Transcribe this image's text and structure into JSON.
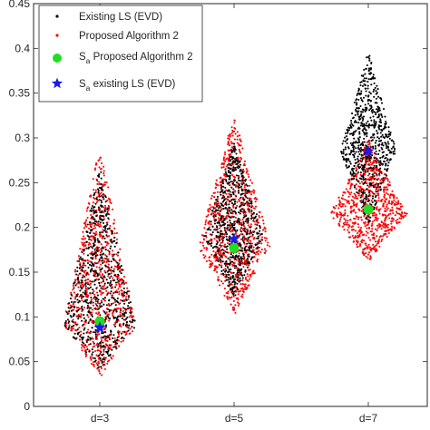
{
  "chart_data": {
    "type": "scatter",
    "categories": [
      "d=3",
      "d=5",
      "d=7"
    ],
    "ylim": [
      0,
      0.45
    ],
    "yticks": [
      "0",
      "0.05",
      "0.1",
      "0.15",
      "0.2",
      "0.25",
      "0.3",
      "0.35",
      "0.4",
      "0.45"
    ],
    "legend_position": "top-left",
    "legend": [
      {
        "label": "Existing LS (EVD)",
        "marker": "dot",
        "color": "#000000"
      },
      {
        "label": "Proposed Algorithm 2",
        "marker": "dot",
        "color": "#ff0000"
      },
      {
        "label_main": "S",
        "label_sub": "a",
        "label_rest": " Proposed Algorithm 2",
        "marker": "circle",
        "color": "#22dd22"
      },
      {
        "label_main": "S",
        "label_sub": "a",
        "label_rest": " existing LS (EVD)",
        "marker": "star",
        "color": "#1a1aee"
      }
    ],
    "series": [
      {
        "name": "Existing LS (EVD)",
        "color": "#000000",
        "marker": "dot",
        "distributions": [
          {
            "category": "d=3",
            "center": 0.088,
            "mode": 0.09,
            "min": 0.04,
            "max": 0.27,
            "width": 0.55
          },
          {
            "category": "d=5",
            "center": 0.19,
            "mode": 0.19,
            "min": 0.12,
            "max": 0.3,
            "width": 0.45
          },
          {
            "category": "d=7",
            "center": 0.285,
            "mode": 0.285,
            "min": 0.2,
            "max": 0.4,
            "width": 0.42
          }
        ]
      },
      {
        "name": "Proposed Algorithm 2",
        "color": "#ff0000",
        "marker": "dot",
        "distributions": [
          {
            "category": "d=3",
            "center": 0.093,
            "mode": 0.09,
            "min": 0.03,
            "max": 0.3,
            "width": 0.55
          },
          {
            "category": "d=5",
            "center": 0.18,
            "mode": 0.18,
            "min": 0.1,
            "max": 0.33,
            "width": 0.55
          },
          {
            "category": "d=7",
            "center": 0.22,
            "mode": 0.215,
            "min": 0.16,
            "max": 0.3,
            "width": 0.58
          }
        ]
      },
      {
        "name": "S_a Proposed Algorithm 2",
        "color": "#22dd22",
        "marker": "circle",
        "points": [
          {
            "category": "d=3",
            "y": 0.095
          },
          {
            "category": "d=5",
            "y": 0.177
          },
          {
            "category": "d=7",
            "y": 0.22
          }
        ]
      },
      {
        "name": "S_a existing LS (EVD)",
        "color": "#1a1aee",
        "marker": "star",
        "points": [
          {
            "category": "d=3",
            "y": 0.088
          },
          {
            "category": "d=5",
            "y": 0.187
          },
          {
            "category": "d=7",
            "y": 0.285
          }
        ]
      }
    ]
  }
}
